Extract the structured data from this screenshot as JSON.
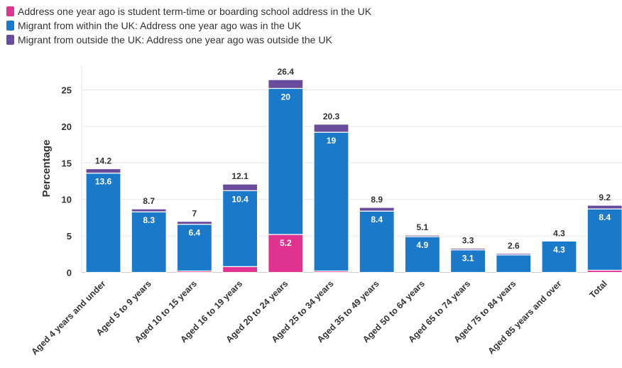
{
  "chart_data": {
    "type": "bar",
    "stacked": true,
    "ylabel": "Percentage",
    "xlabel": "",
    "ylim": [
      0,
      27
    ],
    "yticks": [
      0,
      5,
      10,
      15,
      20,
      25
    ],
    "grid": "horizontal",
    "legend_position": "top-left",
    "categories": [
      "Aged 4 years and under",
      "Aged 5 to 9 years",
      "Aged 10 to 15 years",
      "Aged 16 to 19 years",
      "Aged 20 to 24 years",
      "Aged 25 to 34 years",
      "Aged 35 to 49 years",
      "Aged 50 to 64 years",
      "Aged 65 to 74 years",
      "Aged 75 to 84 years",
      "Aged 85 years and over",
      "Total"
    ],
    "series": [
      {
        "name": "Address one year ago is student term-time or boarding school address in the UK",
        "color": "#e0338f",
        "values": [
          0,
          0,
          0.2,
          0.8,
          5.2,
          0.2,
          0,
          0,
          0,
          0,
          0,
          0.3
        ],
        "labels": [
          "",
          "",
          "",
          "",
          "5.2",
          "",
          "",
          "",
          "",
          "",
          "",
          ""
        ]
      },
      {
        "name": "Migrant from within the UK: Address one year ago was in the UK",
        "color": "#1a7ac9",
        "values": [
          13.6,
          8.3,
          6.4,
          10.4,
          20,
          19,
          8.4,
          4.9,
          3.1,
          2.4,
          4.3,
          8.4
        ],
        "labels": [
          "13.6",
          "8.3",
          "6.4",
          "10.4",
          "20",
          "19",
          "8.4",
          "4.9",
          "3.1",
          "",
          "4.3",
          "8.4"
        ]
      },
      {
        "name": "Migrant from outside the UK: Address one year ago was outside the UK",
        "color": "#6a4c9c",
        "values": [
          0.6,
          0.4,
          0.4,
          0.9,
          1.2,
          1.1,
          0.5,
          0.2,
          0.2,
          0.2,
          0,
          0.5
        ],
        "labels": [
          "",
          "",
          "",
          "",
          "",
          "",
          "",
          "",
          "",
          "",
          "",
          ""
        ]
      }
    ],
    "totals": [
      "14.2",
      "8.7",
      "7",
      "12.1",
      "26.4",
      "20.3",
      "8.9",
      "5.1",
      "3.3",
      "2.6",
      "4.3",
      "9.2"
    ]
  }
}
